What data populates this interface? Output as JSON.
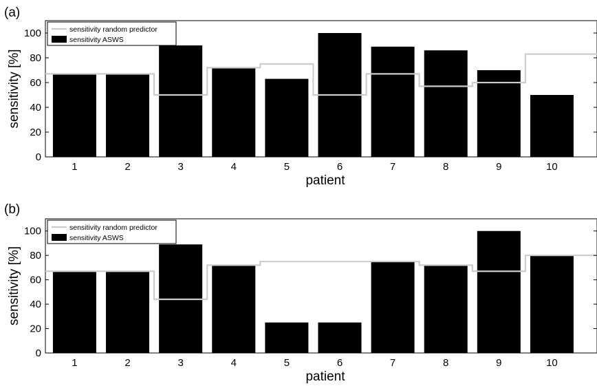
{
  "chart_data": [
    {
      "panel_label": "(a)",
      "type": "bar",
      "categories": [
        "1",
        "2",
        "3",
        "4",
        "5",
        "6",
        "7",
        "8",
        "9",
        "10"
      ],
      "series": [
        {
          "name": "sensitivity random predictor",
          "style": "step-line",
          "color": "#cccccc",
          "values": [
            67,
            67,
            50,
            72,
            75,
            50,
            67,
            57,
            60,
            83
          ]
        },
        {
          "name": "sensitivity ASWS",
          "style": "bar",
          "color": "#000000",
          "values": [
            67,
            67,
            90,
            72,
            63,
            100,
            89,
            86,
            70,
            50
          ]
        }
      ],
      "xlabel": "patient",
      "ylabel": "sensitivity [%]",
      "ylim": [
        0,
        110
      ],
      "yticks": [
        "0",
        "20",
        "40",
        "60",
        "80",
        "100"
      ],
      "legend_position": "top-left",
      "grid": false
    },
    {
      "panel_label": "(b)",
      "type": "bar",
      "categories": [
        "1",
        "2",
        "3",
        "4",
        "5",
        "6",
        "7",
        "8",
        "9",
        "10"
      ],
      "series": [
        {
          "name": "sensitivity random predictor",
          "style": "step-line",
          "color": "#cccccc",
          "values": [
            67,
            67,
            44,
            72,
            75,
            75,
            75,
            72,
            67,
            80
          ]
        },
        {
          "name": "sensitivity ASWS",
          "style": "bar",
          "color": "#000000",
          "values": [
            67,
            67,
            89,
            72,
            25,
            25,
            75,
            72,
            100,
            80
          ]
        }
      ],
      "xlabel": "patient",
      "ylabel": "sensitivity [%]",
      "ylim": [
        0,
        110
      ],
      "yticks": [
        "0",
        "20",
        "40",
        "60",
        "80",
        "100"
      ],
      "legend_position": "top-left",
      "grid": false
    }
  ]
}
